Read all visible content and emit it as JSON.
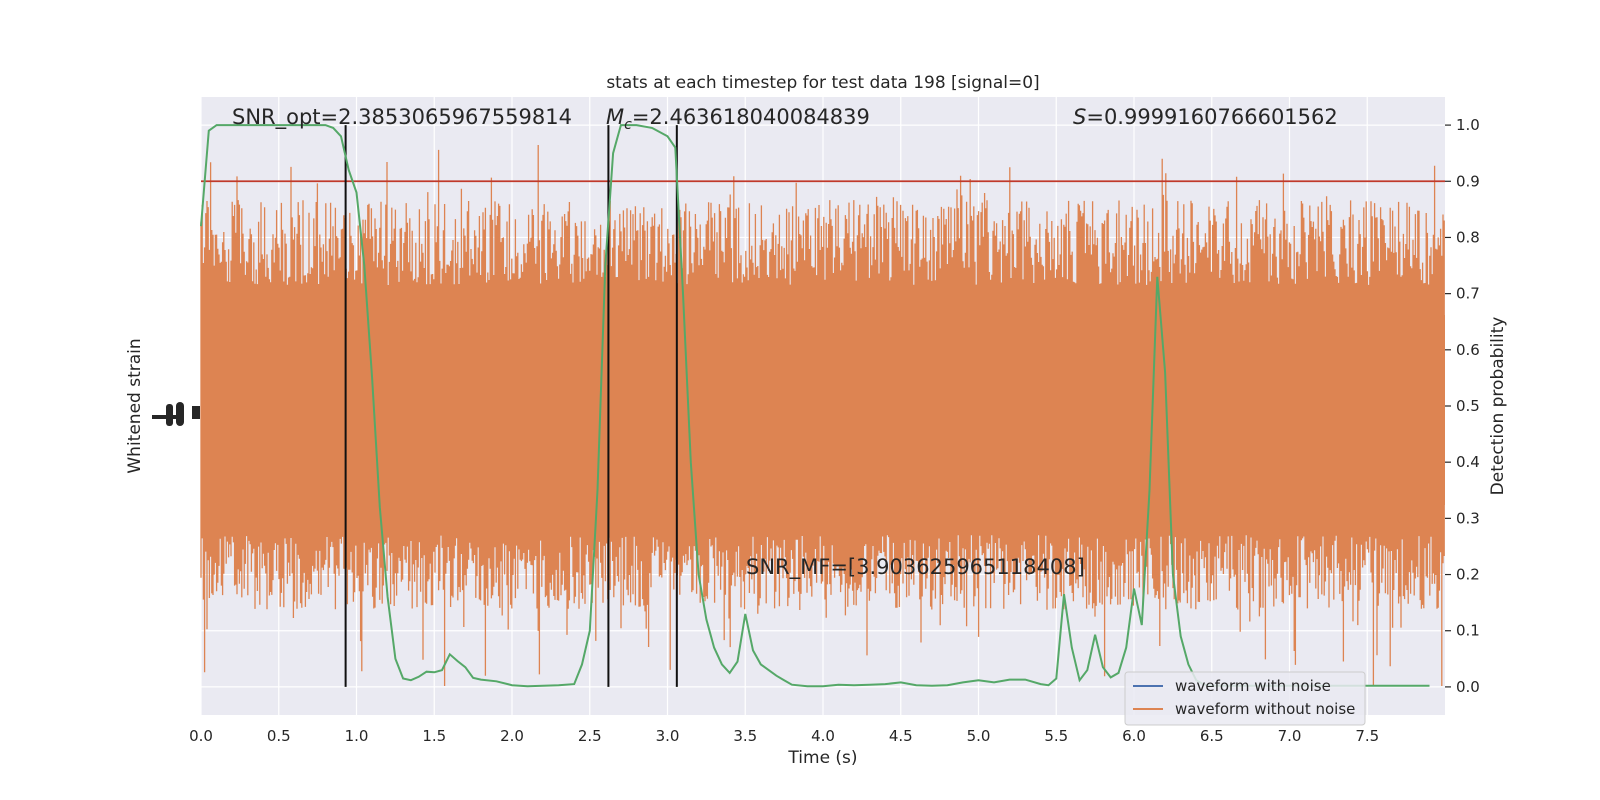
{
  "chart_data": {
    "type": "line",
    "title": "stats at each timestep for test data 198 [signal=0]",
    "xlabel": "Time (s)",
    "ylabel_left": "Whitened strain",
    "ylabel_right": "Detection probability",
    "xlim": [
      0.0,
      8.0
    ],
    "ylim_right": [
      -0.05,
      1.05
    ],
    "x_ticks": [
      0.0,
      0.5,
      1.0,
      1.5,
      2.0,
      2.5,
      3.0,
      3.5,
      4.0,
      4.5,
      5.0,
      5.5,
      6.0,
      6.5,
      7.0,
      7.5
    ],
    "x_tick_labels": [
      "0.0",
      "0.5",
      "1.0",
      "1.5",
      "2.0",
      "2.5",
      "3.0",
      "3.5",
      "4.0",
      "4.5",
      "5.0",
      "5.5",
      "6.0",
      "6.5",
      "7.0",
      "7.5"
    ],
    "y_right_ticks": [
      0.0,
      0.1,
      0.2,
      0.3,
      0.4,
      0.5,
      0.6,
      0.7,
      0.8,
      0.9,
      1.0
    ],
    "y_right_tick_labels": [
      "0.0",
      "0.1",
      "0.2",
      "0.3",
      "0.4",
      "0.5",
      "0.6",
      "0.7",
      "0.8",
      "0.9",
      "1.0"
    ],
    "grid": true,
    "legend_placement": "lower-right",
    "annotations": {
      "snr_opt": "SNR_opt=2.3853065967559814",
      "mc_symbol": "M",
      "mc_sub": "c",
      "mc_value": "=2.463618040084839",
      "s_symbol": "S",
      "s_value": "=0.9999160766601562",
      "snr_mf": "SNR_MF=[3.903625965118408]"
    },
    "threshold": {
      "value": 0.9,
      "color": "#c0392b"
    },
    "vertical_markers": [
      0.93,
      2.62,
      3.06
    ],
    "series": [
      {
        "name": "waveform with noise",
        "color": "#4c72b0"
      },
      {
        "name": "waveform without noise",
        "color": "#dd8452"
      },
      {
        "color": "#55a868",
        "x": [
          0.0,
          0.05,
          0.1,
          0.2,
          0.3,
          0.4,
          0.5,
          0.6,
          0.7,
          0.8,
          0.85,
          0.9,
          0.95,
          1.0,
          1.05,
          1.1,
          1.15,
          1.2,
          1.25,
          1.3,
          1.35,
          1.4,
          1.45,
          1.5,
          1.55,
          1.6,
          1.65,
          1.7,
          1.75,
          1.8,
          1.9,
          2.0,
          2.1,
          2.2,
          2.3,
          2.4,
          2.45,
          2.5,
          2.55,
          2.6,
          2.65,
          2.7,
          2.75,
          2.8,
          2.9,
          3.0,
          3.05,
          3.1,
          3.15,
          3.2,
          3.25,
          3.3,
          3.35,
          3.4,
          3.45,
          3.5,
          3.55,
          3.6,
          3.7,
          3.75,
          3.8,
          3.9,
          4.0,
          4.1,
          4.2,
          4.3,
          4.4,
          4.5,
          4.6,
          4.7,
          4.8,
          4.9,
          5.0,
          5.1,
          5.2,
          5.3,
          5.4,
          5.45,
          5.5,
          5.55,
          5.6,
          5.65,
          5.7,
          5.75,
          5.8,
          5.85,
          5.9,
          5.95,
          6.0,
          6.05,
          6.1,
          6.15,
          6.2,
          6.25,
          6.3,
          6.35,
          6.4,
          6.45,
          6.5,
          6.55,
          6.6,
          6.7,
          6.8,
          6.9,
          7.0,
          7.1,
          7.2,
          7.3,
          7.4,
          7.5,
          7.6,
          7.7,
          7.8,
          7.9
        ],
        "y": [
          0.82,
          0.99,
          1.0,
          1.0,
          1.0,
          1.0,
          1.0,
          1.0,
          1.0,
          1.0,
          0.995,
          0.98,
          0.92,
          0.88,
          0.75,
          0.55,
          0.32,
          0.16,
          0.05,
          0.015,
          0.012,
          0.018,
          0.027,
          0.026,
          0.03,
          0.058,
          0.046,
          0.035,
          0.016,
          0.013,
          0.01,
          0.003,
          0.001,
          0.002,
          0.003,
          0.005,
          0.04,
          0.1,
          0.35,
          0.75,
          0.95,
          1.0,
          1.0,
          1.0,
          0.995,
          0.98,
          0.96,
          0.7,
          0.4,
          0.2,
          0.12,
          0.07,
          0.04,
          0.025,
          0.045,
          0.13,
          0.065,
          0.04,
          0.02,
          0.012,
          0.004,
          0.001,
          0.001,
          0.004,
          0.003,
          0.004,
          0.005,
          0.008,
          0.003,
          0.002,
          0.003,
          0.008,
          0.012,
          0.008,
          0.013,
          0.013,
          0.005,
          0.003,
          0.015,
          0.165,
          0.07,
          0.012,
          0.03,
          0.093,
          0.035,
          0.017,
          0.025,
          0.07,
          0.175,
          0.11,
          0.35,
          0.73,
          0.56,
          0.2,
          0.09,
          0.04,
          0.012,
          0.004,
          0.002,
          0.002,
          0.002,
          0.002,
          0.002,
          0.002,
          0.002,
          0.002,
          0.002,
          0.002,
          0.002,
          0.002,
          0.002,
          0.002,
          0.002,
          0.002
        ],
        "x_extra": [],
        "y_extra": []
      }
    ]
  }
}
